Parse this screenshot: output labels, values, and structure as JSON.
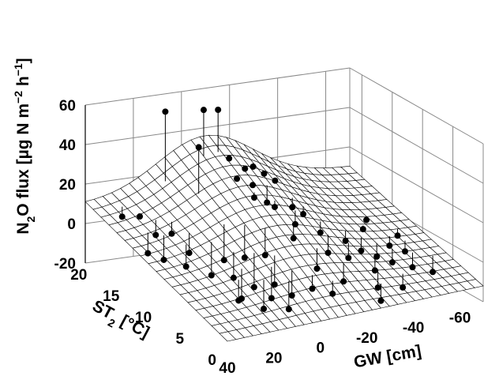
{
  "chart_data": {
    "type": "surface-scatter-3d",
    "axes": {
      "z": {
        "label_parts": [
          "N",
          "2",
          "O flux [µg N m",
          "−2",
          " h",
          "−1",
          "]"
        ],
        "range": [
          -20,
          60
        ],
        "ticks": [
          "60",
          "40",
          "20",
          "0",
          "-20"
        ]
      },
      "y": {
        "label_parts": [
          "ST",
          "2",
          " [°C]"
        ],
        "range": [
          0,
          22
        ],
        "ticks": [
          "20",
          "15",
          "10",
          "5",
          "0"
        ]
      },
      "x": {
        "label": "GW [cm]",
        "range": [
          40,
          -70
        ],
        "ticks": [
          "40",
          "20",
          "0",
          "-20",
          "-40",
          "-60"
        ]
      }
    },
    "surface": {
      "type": "fitted-mesh",
      "grid": "on",
      "fill": "#ffffff",
      "line_color": "#000000"
    },
    "points": [
      {
        "gw": 12,
        "st": 20,
        "n2o": 56
      },
      {
        "gw": 6,
        "st": 17,
        "n2o": 43
      },
      {
        "gw": -4,
        "st": 20,
        "n2o": 54
      },
      {
        "gw": -10,
        "st": 20,
        "n2o": 53
      },
      {
        "gw": -12,
        "st": 19,
        "n2o": 30
      },
      {
        "gw": -10,
        "st": 17,
        "n2o": 24
      },
      {
        "gw": -12,
        "st": 15,
        "n2o": 18
      },
      {
        "gw": -16,
        "st": 18,
        "n2o": 26
      },
      {
        "gw": -14,
        "st": 16,
        "n2o": 22
      },
      {
        "gw": -18,
        "st": 14,
        "n2o": 14
      },
      {
        "gw": -22,
        "st": 19,
        "n2o": 24
      },
      {
        "gw": -24,
        "st": 18,
        "n2o": 22
      },
      {
        "gw": -20,
        "st": 16,
        "n2o": 12
      },
      {
        "gw": -26,
        "st": 17,
        "n2o": 20
      },
      {
        "gw": -28,
        "st": 15,
        "n2o": 10
      },
      {
        "gw": -24,
        "st": 13,
        "n2o": 6
      },
      {
        "gw": -30,
        "st": 14,
        "n2o": 8
      },
      {
        "gw": -18,
        "st": 11,
        "n2o": 4
      },
      {
        "gw": -32,
        "st": 12,
        "n2o": 2
      },
      {
        "gw": -20,
        "st": 8,
        "n2o": -6
      },
      {
        "gw": -30,
        "st": 10,
        "n2o": -4
      },
      {
        "gw": -36,
        "st": 9,
        "n2o": -6
      },
      {
        "gw": -26,
        "st": 6,
        "n2o": -10
      },
      {
        "gw": -40,
        "st": 11,
        "n2o": -2
      },
      {
        "gw": -44,
        "st": 10,
        "n2o": -6
      },
      {
        "gw": -42,
        "st": 7,
        "n2o": -10
      },
      {
        "gw": -48,
        "st": 9,
        "n2o": -8
      },
      {
        "gw": -50,
        "st": 12,
        "n2o": 0
      },
      {
        "gw": -52,
        "st": 8,
        "n2o": -10
      },
      {
        "gw": -56,
        "st": 10,
        "n2o": -6
      },
      {
        "gw": -58,
        "st": 7,
        "n2o": -12
      },
      {
        "gw": -60,
        "st": 9,
        "n2o": -8
      },
      {
        "gw": -62,
        "st": 11,
        "n2o": -4
      },
      {
        "gw": -54,
        "st": 13,
        "n2o": 2
      },
      {
        "gw": -64,
        "st": 6,
        "n2o": -14
      },
      {
        "gw": -38,
        "st": 5,
        "n2o": -14
      },
      {
        "gw": -34,
        "st": 3,
        "n2o": -16
      },
      {
        "gw": -46,
        "st": 4,
        "n2o": -14
      },
      {
        "gw": -16,
        "st": 4,
        "n2o": -10
      },
      {
        "gw": -10,
        "st": 5,
        "n2o": -8
      },
      {
        "gw": 30,
        "st": 20,
        "n2o": 6
      },
      {
        "gw": 28,
        "st": 18,
        "n2o": 10
      },
      {
        "gw": 30,
        "st": 16,
        "n2o": -4
      },
      {
        "gw": 26,
        "st": 15,
        "n2o": -6
      },
      {
        "gw": 24,
        "st": 17,
        "n2o": 2
      },
      {
        "gw": 20,
        "st": 16,
        "n2o": 4
      },
      {
        "gw": 22,
        "st": 13,
        "n2o": -6
      },
      {
        "gw": 18,
        "st": 14,
        "n2o": -2
      },
      {
        "gw": 14,
        "st": 12,
        "n2o": -10
      },
      {
        "gw": 10,
        "st": 10,
        "n2o": -8
      },
      {
        "gw": 12,
        "st": 8,
        "n2o": -14
      },
      {
        "gw": 8,
        "st": 6,
        "n2o": -16
      },
      {
        "gw": 4,
        "st": 9,
        "n2o": -12
      },
      {
        "gw": 2,
        "st": 7,
        "n2o": -14
      },
      {
        "gw": 0,
        "st": 5,
        "n2o": -16
      },
      {
        "gw": -2,
        "st": 8,
        "n2o": -10
      },
      {
        "gw": -4,
        "st": 6,
        "n2o": -12
      },
      {
        "gw": 16,
        "st": 7,
        "n2o": -12
      },
      {
        "gw": 6,
        "st": 13,
        "n2o": -6
      },
      {
        "gw": 0,
        "st": 12,
        "n2o": -4
      },
      {
        "gw": -6,
        "st": 11,
        "n2o": -2
      }
    ]
  }
}
